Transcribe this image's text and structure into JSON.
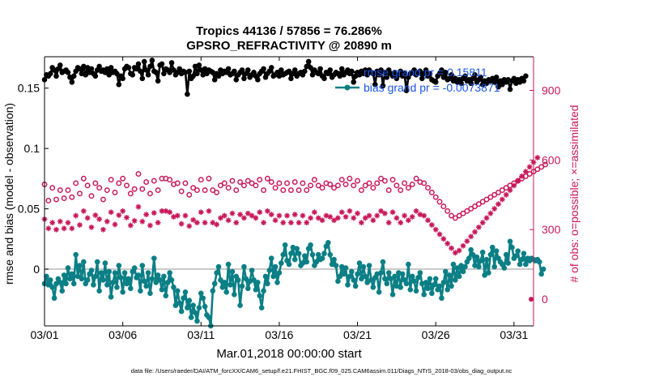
{
  "chart_data": {
    "type": "line",
    "title": "Tropics 44136 / 57856 = 76.286%",
    "subtitle": "GPSRO_REFRACTIVITY @ 20890 m",
    "xlabel": "Mar.01,2018 00:00:00 start",
    "ylabel": "rmse and bias (model - observation)",
    "ylabel_right": "# of obs: o=possible; ×=assimilated",
    "footnote": "data file: /Users/raeder/DAI/ATM_forcXX/CAM6_setup/f.e21.FHIST_BGC.f09_025.CAM6assim.011/Diags_NTrS_2018-03/obs_diag_output.nc",
    "xlim": [
      0,
      31.25
    ],
    "ylim": [
      -0.047,
      0.176
    ],
    "ylim_right": [
      -115,
      1045
    ],
    "x_ticks": [
      0,
      5,
      10,
      15,
      20,
      25,
      30
    ],
    "x_tick_labels": [
      "03/01",
      "03/06",
      "03/11",
      "03/16",
      "03/21",
      "03/26",
      "03/31"
    ],
    "y_ticks": [
      0,
      0.05,
      0.1,
      0.15
    ],
    "y_tick_labels": [
      "0",
      "0.05",
      "0.1",
      "0.15"
    ],
    "y_ticks_right": [
      0,
      300,
      600,
      900
    ],
    "y_tick_labels_right": [
      "0",
      "300",
      "600",
      "900"
    ],
    "legend": [
      "rmse grand pr = 0.15811",
      "bias grand pr = -0.0073871"
    ],
    "x_step_days": 0.125,
    "series": [
      {
        "name": "rmse grand pr = 0.15811",
        "axis": "left",
        "color": "#000000",
        "values": [
          0.157,
          0.161,
          0.16,
          0.162,
          0.167,
          0.165,
          0.16,
          0.166,
          0.169,
          0.163,
          0.164,
          0.165,
          0.163,
          0.159,
          0.155,
          0.16,
          0.164,
          0.167,
          0.166,
          0.162,
          0.168,
          0.161,
          0.167,
          0.163,
          0.166,
          0.162,
          0.16,
          0.165,
          0.168,
          0.164,
          0.165,
          0.163,
          0.166,
          0.161,
          0.167,
          0.163,
          0.164,
          0.162,
          0.153,
          0.16,
          0.158,
          0.166,
          0.168,
          0.167,
          0.162,
          0.161,
          0.167,
          0.166,
          0.17,
          0.164,
          0.158,
          0.172,
          0.165,
          0.161,
          0.168,
          0.173,
          0.164,
          0.163,
          0.156,
          0.169,
          0.17,
          0.162,
          0.166,
          0.165,
          0.163,
          0.171,
          0.165,
          0.161,
          0.163,
          0.166,
          0.162,
          0.164,
          0.163,
          0.145,
          0.164,
          0.158,
          0.16,
          0.168,
          0.162,
          0.169,
          0.165,
          0.161,
          0.166,
          0.162,
          0.165,
          0.164,
          0.163,
          0.157,
          0.162,
          0.16,
          0.165,
          0.162,
          0.164,
          0.163,
          0.166,
          0.161,
          0.162,
          0.164,
          0.157,
          0.161,
          0.163,
          0.165,
          0.158,
          0.162,
          0.165,
          0.159,
          0.161,
          0.163,
          0.16,
          0.157,
          0.162,
          0.164,
          0.166,
          0.159,
          0.162,
          0.164,
          0.167,
          0.16,
          0.161,
          0.163,
          0.16,
          0.165,
          0.161,
          0.162,
          0.163,
          0.164,
          0.158,
          0.162,
          0.165,
          0.16,
          0.162,
          0.163,
          0.161,
          0.164,
          0.168,
          0.172,
          0.167,
          0.161,
          0.165,
          0.163,
          0.162,
          0.166,
          0.16,
          0.158,
          0.163,
          0.162,
          0.165,
          0.159,
          0.161,
          0.163,
          0.162,
          0.16,
          0.166,
          0.161,
          0.163,
          0.165,
          0.162,
          0.164,
          0.155,
          0.16,
          0.163,
          0.161,
          0.164,
          0.162,
          0.165,
          0.161,
          0.165,
          0.163,
          0.162,
          0.153,
          0.164,
          0.161,
          0.165,
          0.152,
          0.163,
          0.159,
          0.165,
          0.162,
          0.16,
          0.163,
          0.158,
          0.161,
          0.164,
          0.16,
          0.162,
          0.148,
          0.159,
          0.162,
          0.163,
          0.165,
          0.161,
          0.163,
          0.164,
          0.158,
          0.162,
          0.165,
          0.16,
          0.162,
          0.157,
          0.156,
          0.155,
          0.16,
          0.162,
          0.165,
          0.159,
          0.163,
          0.157,
          0.158,
          0.161,
          0.156,
          0.158,
          0.155,
          0.157,
          0.154,
          0.158,
          0.16,
          0.156,
          0.157,
          0.154,
          0.158,
          0.161,
          0.155,
          0.157,
          0.159,
          0.153,
          0.156,
          0.154,
          0.157,
          0.156,
          0.158,
          0.155,
          0.159,
          0.151,
          0.156,
          0.153,
          0.157,
          0.155,
          0.157,
          0.149,
          0.156,
          0.158,
          0.154,
          0.157,
          0.155,
          0.158,
          0.156,
          0.16
        ]
      },
      {
        "name": "bias grand pr = -0.0073871",
        "axis": "left",
        "color": "#0a7f85",
        "values": [
          -0.012,
          -0.006,
          -0.013,
          -0.009,
          -0.015,
          -0.024,
          -0.012,
          -0.008,
          -0.011,
          -0.018,
          -0.005,
          -0.012,
          0.001,
          -0.008,
          -0.004,
          -0.012,
          0.012,
          -0.006,
          0.003,
          -0.008,
          0.006,
          -0.012,
          -0.009,
          -0.004,
          -0.001,
          -0.013,
          -0.006,
          0.006,
          -0.018,
          -0.003,
          -0.009,
          0.005,
          -0.013,
          -0.002,
          -0.023,
          -0.011,
          -0.003,
          -0.015,
          0.003,
          -0.007,
          -0.019,
          -0.003,
          -0.012,
          -0.008,
          -0.016,
          -0.002,
          0.001,
          -0.007,
          -0.005,
          -0.018,
          0.003,
          -0.01,
          -0.014,
          -0.003,
          -0.02,
          -0.008,
          0.009,
          -0.011,
          -0.005,
          -0.009,
          -0.017,
          -0.006,
          -0.022,
          -0.011,
          -0.003,
          -0.009,
          -0.015,
          -0.03,
          -0.018,
          -0.028,
          -0.035,
          -0.024,
          -0.019,
          -0.032,
          -0.026,
          -0.04,
          -0.03,
          -0.036,
          -0.043,
          -0.032,
          -0.02,
          -0.024,
          -0.031,
          -0.038,
          -0.04,
          -0.047,
          -0.018,
          -0.012,
          -0.003,
          0.002,
          -0.009,
          -0.015,
          -0.011,
          -0.019,
          0.004,
          -0.013,
          -0.002,
          -0.021,
          -0.006,
          -0.009,
          -0.03,
          -0.014,
          0.002,
          -0.008,
          -0.016,
          -0.01,
          -0.001,
          -0.009,
          -0.017,
          -0.011,
          -0.022,
          -0.032,
          -0.018,
          -0.006,
          -0.012,
          -0.001,
          0.009,
          -0.006,
          0.002,
          -0.011,
          -0.003,
          0.005,
          0.012,
          0.02,
          0.007,
          0.004,
          0.013,
          0.018,
          0.008,
          0.017,
          0.013,
          0.003,
          0.005,
          0.011,
          0.006,
          0.017,
          0.02,
          0.012,
          0.003,
          0.006,
          0.012,
          0.008,
          0.009,
          0.013,
          0.019,
          0.022,
          0.012,
          0.004,
          0.008,
          0.003,
          -0.01,
          -0.006,
          0.002,
          -0.004,
          0.001,
          -0.013,
          -0.006,
          -0.002,
          -0.009,
          -0.014,
          -0.004,
          0.005,
          -0.008,
          0.002,
          -0.006,
          -0.011,
          0.003,
          -0.009,
          -0.015,
          -0.007,
          -0.004,
          -0.019,
          -0.003,
          0.006,
          -0.008,
          -0.012,
          -0.003,
          -0.008,
          -0.021,
          -0.006,
          -0.014,
          -0.003,
          -0.015,
          -0.004,
          -0.009,
          -0.012,
          0.004,
          -0.017,
          -0.006,
          -0.01,
          -0.018,
          -0.007,
          -0.003,
          -0.012,
          -0.021,
          -0.011,
          -0.016,
          -0.008,
          -0.02,
          -0.013,
          -0.008,
          -0.017,
          -0.014,
          -0.024,
          -0.011,
          -0.002,
          -0.017,
          -0.005,
          -0.014,
          0.004,
          -0.009,
          0.001,
          -0.006,
          0.003,
          -0.002,
          0.002,
          0.006,
          0.009,
          0.016,
          0.012,
          0.003,
          0.01,
          0.002,
          0.007,
          0.014,
          -0.005,
          0.008,
          -0.003,
          0.012,
          0.018,
          0.002,
          0.015,
          0.009,
          0.006,
          0.004,
          0.001,
          0.012,
          0.005,
          0.023,
          0.018,
          0.009,
          0.011,
          0.015,
          0.004,
          0.008,
          0.013,
          0.004,
          0.009,
          0.007,
          0.009,
          0.008,
          0.007,
          0.008,
          0.006,
          -0.004,
          0
        ]
      },
      {
        "name": "obs possible (o)",
        "axis": "right",
        "color": "#c8175a",
        "marker": "circle",
        "values": [
          495,
          450,
          425,
          415,
          480,
          445,
          430,
          455,
          470,
          420,
          435,
          448,
          470,
          490,
          440,
          465,
          500,
          475,
          455,
          440,
          520,
          455,
          490,
          475,
          445,
          460,
          500,
          510,
          480,
          470,
          430,
          505,
          470,
          465,
          515,
          485,
          460,
          470,
          500,
          450,
          520,
          475,
          490,
          465,
          455,
          510,
          475,
          500,
          540,
          495,
          475,
          490,
          505,
          480,
          455,
          530,
          510,
          490,
          470,
          540,
          520,
          500,
          520,
          500,
          515,
          510,
          495,
          480,
          500,
          490,
          465,
          520,
          500,
          510,
          450,
          435,
          480,
          495,
          470,
          485,
          515,
          500,
          470,
          490,
          520,
          500,
          470,
          495,
          460,
          520,
          490,
          470,
          500,
          460,
          480,
          520,
          510,
          500,
          470,
          520,
          505,
          510,
          490,
          530,
          510,
          470,
          500,
          520,
          490,
          505,
          515,
          500,
          470,
          480,
          520,
          500,
          505,
          510,
          480,
          470,
          500,
          510,
          470,
          520,
          500,
          490,
          470,
          520,
          505,
          480,
          470,
          480,
          500,
          480,
          470,
          520,
          490,
          505,
          515,
          500,
          490,
          510,
          480,
          470,
          500,
          520,
          495,
          510,
          480,
          470,
          490,
          505,
          515,
          500,
          495,
          470,
          520,
          505,
          490,
          500,
          510,
          480,
          470,
          520,
          490,
          505,
          500,
          470,
          480,
          510,
          500,
          490,
          520,
          505,
          510,
          480,
          470,
          500,
          515,
          495,
          490,
          480,
          470,
          520,
          500,
          510,
          480,
          470,
          495,
          500,
          520,
          490,
          505,
          515,
          500,
          490,
          480,
          470,
          460,
          450,
          440,
          430,
          420,
          410,
          400,
          390,
          380,
          370,
          360,
          350,
          350,
          355,
          360,
          365,
          370,
          375,
          380,
          385,
          390,
          395,
          400,
          405,
          410,
          415,
          420,
          425,
          430,
          435,
          440,
          445,
          450,
          455,
          460,
          465,
          470,
          475,
          480,
          485,
          490,
          495,
          500,
          505,
          510,
          515,
          520,
          525,
          530,
          535,
          540,
          545,
          550,
          555,
          560,
          565,
          570,
          575,
          580
        ]
      },
      {
        "name": "obs assimilated (×)",
        "axis": "right",
        "color": "#c8175a",
        "marker": "star",
        "values": [
          345,
          315,
          305,
          300,
          330,
          310,
          300,
          325,
          335,
          295,
          305,
          318,
          330,
          350,
          305,
          325,
          360,
          340,
          320,
          305,
          380,
          320,
          350,
          338,
          310,
          322,
          362,
          370,
          345,
          330,
          300,
          368,
          335,
          328,
          375,
          350,
          322,
          332,
          362,
          315,
          380,
          338,
          352,
          325,
          318,
          372,
          338,
          362,
          398,
          358,
          335,
          350,
          365,
          340,
          318,
          392,
          372,
          350,
          330,
          398,
          380,
          360,
          380,
          360,
          375,
          370,
          355,
          340,
          360,
          350,
          325,
          380,
          360,
          370,
          315,
          300,
          342,
          355,
          330,
          345,
          375,
          360,
          330,
          350,
          380,
          360,
          330,
          355,
          322,
          380,
          350,
          330,
          360,
          322,
          340,
          380,
          370,
          360,
          330,
          380,
          365,
          370,
          350,
          390,
          370,
          330,
          360,
          380,
          350,
          365,
          375,
          360,
          330,
          340,
          380,
          360,
          365,
          370,
          340,
          330,
          360,
          370,
          330,
          380,
          360,
          350,
          330,
          380,
          365,
          340,
          330,
          340,
          360,
          340,
          330,
          380,
          350,
          365,
          375,
          360,
          350,
          370,
          340,
          330,
          360,
          380,
          355,
          370,
          340,
          330,
          350,
          365,
          375,
          360,
          355,
          330,
          380,
          365,
          350,
          360,
          370,
          340,
          330,
          380,
          350,
          365,
          360,
          330,
          340,
          370,
          360,
          350,
          380,
          365,
          370,
          340,
          330,
          360,
          375,
          355,
          350,
          340,
          330,
          380,
          360,
          370,
          340,
          330,
          355,
          360,
          380,
          350,
          365,
          375,
          360,
          350,
          340,
          330,
          320,
          310,
          300,
          290,
          280,
          270,
          260,
          250,
          240,
          230,
          220,
          210,
          200,
          205,
          210,
          220,
          230,
          240,
          250,
          260,
          270,
          280,
          290,
          300,
          310,
          320,
          330,
          340,
          350,
          360,
          370,
          380,
          390,
          400,
          410,
          420,
          430,
          440,
          450,
          460,
          470,
          480,
          490,
          500,
          510,
          520,
          530,
          540,
          550,
          560,
          570,
          580,
          590,
          600,
          610
        ]
      }
    ]
  }
}
